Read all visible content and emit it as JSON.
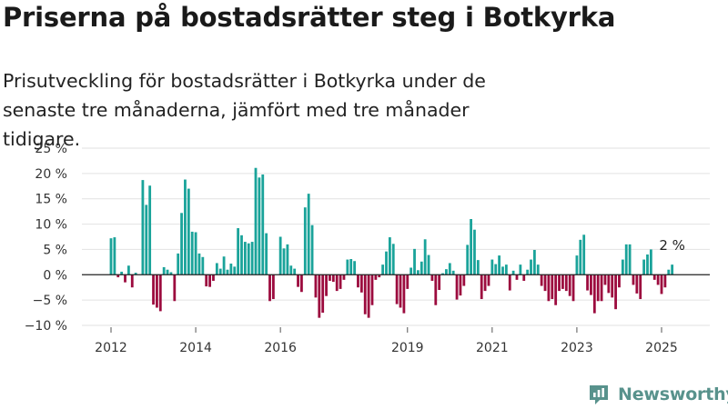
{
  "title": "Priserna på bostadsrätter steg i Botkyrka",
  "subtitle": "Prisutveckling för bostadsrätter i Botkyrka under de senaste tre månaderna, jämfört med tre månader tidigare.",
  "brand": {
    "name": "Newsworthy",
    "icon": "newsworthy-logo-icon"
  },
  "colors": {
    "positive": "#1aa39a",
    "negative": "#9c0b3e"
  },
  "chart_data": {
    "type": "bar",
    "x_start": "2012-01",
    "x_step": "month",
    "ylim": [
      -10,
      25
    ],
    "ytick_values": [
      -10,
      -5,
      0,
      5,
      10,
      15,
      20,
      25
    ],
    "yticks": [
      "−10 %",
      "−5 %",
      "0 %",
      "5 %",
      "10 %",
      "15 %",
      "20 %",
      "25 %"
    ],
    "xticks": [
      "2012",
      "2014",
      "2016",
      "2019",
      "2021",
      "2023",
      "2025"
    ],
    "xtick_months": [
      "2012-01",
      "2014-01",
      "2016-01",
      "2019-01",
      "2021-01",
      "2023-01",
      "2025-01"
    ],
    "grid": "horizontal",
    "values": [
      7.2,
      7.4,
      -0.5,
      0.6,
      -1.5,
      1.8,
      -2.5,
      0.4,
      0,
      18.7,
      13.8,
      17.6,
      -5.9,
      -6.5,
      -7.2,
      1.5,
      1.0,
      0.5,
      -5.2,
      4.2,
      12.2,
      18.8,
      17.0,
      8.5,
      8.4,
      4.2,
      3.5,
      -2.3,
      -2.4,
      -1.2,
      2.3,
      1.2,
      3.6,
      1.0,
      2.2,
      1.6,
      9.2,
      7.8,
      6.5,
      6.2,
      6.5,
      21.1,
      19.2,
      19.8,
      8.2,
      -5.2,
      -4.8,
      0,
      7.5,
      5.2,
      6.0,
      1.8,
      1.2,
      -2.4,
      -3.4,
      13.3,
      16.0,
      9.8,
      -4.5,
      -8.5,
      -7.5,
      -4.2,
      -1.2,
      -1.4,
      -3.2,
      -2.8,
      -1.0,
      3.0,
      3.1,
      2.7,
      -2.5,
      -3.5,
      -7.8,
      -8.5,
      -6.0,
      -1.0,
      -0.5,
      2.0,
      4.6,
      7.4,
      6.1,
      -5.8,
      -6.5,
      -7.6,
      -2.8,
      1.4,
      5.1,
      0.9,
      2.6,
      7.0,
      3.9,
      -1.2,
      -6.0,
      -3.0,
      0.3,
      1.1,
      2.3,
      0.8,
      -4.9,
      -4.1,
      -2.2,
      5.9,
      11.0,
      8.9,
      2.9,
      -4.8,
      -3.2,
      -2.2,
      3.0,
      2.1,
      3.8,
      1.6,
      2.0,
      -3.1,
      0.8,
      -1.0,
      2.0,
      -1.2,
      1.0,
      3.0,
      4.9,
      2.0,
      -2.2,
      -3.2,
      -5.2,
      -4.8,
      -6.0,
      -3.2,
      -2.8,
      -3.2,
      -4.2,
      -5.2,
      3.8,
      6.9,
      7.9,
      -3.1,
      -4.0,
      -7.6,
      -5.2,
      -5.2,
      -2.0,
      -3.6,
      -4.5,
      -6.8,
      -2.5,
      3.0,
      6.0,
      6.0,
      -2.0,
      -3.7,
      -4.8,
      3.0,
      4.0,
      5.0,
      -1.0,
      -2.0,
      -3.8,
      -2.5,
      1.0,
      2.0
    ],
    "annotation": {
      "text": "2 %",
      "month": "2025-04"
    }
  }
}
